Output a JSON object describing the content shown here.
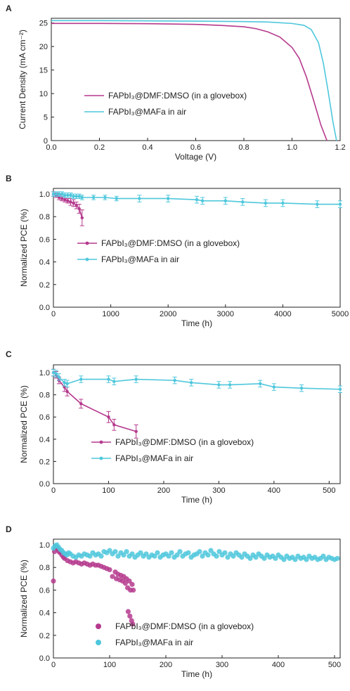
{
  "colors": {
    "magenta": "#b5398d",
    "cyan": "#4ec7dc"
  },
  "chart_data": [
    {
      "panel": "A",
      "type": "line",
      "xlabel": "Voltage (V)",
      "ylabel": "Current Density (mA cm⁻²)",
      "xlim": [
        0,
        1.2
      ],
      "ylim": [
        0,
        26
      ],
      "xticks": [
        "0.0",
        "0.2",
        "0.4",
        "0.6",
        "0.8",
        "1.0",
        "1.2"
      ],
      "yticks": [
        "0",
        "5",
        "10",
        "15",
        "20",
        "25"
      ],
      "legend": [
        "FAPbI₃@DMF:DMSO (in a glovebox)",
        "FAPbI₃@MAFa in air"
      ],
      "series": [
        {
          "name": "FAPbI₃@DMF:DMSO (in a glovebox)",
          "color": "#b5398d",
          "x": [
            0,
            0.2,
            0.4,
            0.6,
            0.7,
            0.8,
            0.85,
            0.9,
            0.95,
            1.0,
            1.03,
            1.06,
            1.09,
            1.12,
            1.145
          ],
          "y": [
            24.9,
            24.9,
            24.85,
            24.7,
            24.5,
            24.2,
            23.8,
            23.1,
            22.0,
            19.8,
            17.5,
            13.5,
            8.5,
            3.3,
            0
          ]
        },
        {
          "name": "FAPbI₃@MAFa in air",
          "color": "#4ec7dc",
          "x": [
            0,
            0.2,
            0.4,
            0.6,
            0.8,
            0.9,
            1.0,
            1.05,
            1.08,
            1.11,
            1.13,
            1.15,
            1.17,
            1.185
          ],
          "y": [
            25.5,
            25.5,
            25.45,
            25.4,
            25.3,
            25.2,
            24.9,
            24.5,
            23.6,
            20.8,
            16.5,
            10.5,
            4.0,
            0
          ]
        }
      ]
    },
    {
      "panel": "B",
      "type": "line",
      "xlabel": "Time (h)",
      "ylabel": "Normalized PCE (%)",
      "xlim": [
        0,
        5000
      ],
      "ylim": [
        0,
        1.05
      ],
      "xticks": [
        "0",
        "1000",
        "2000",
        "3000",
        "4000",
        "5000"
      ],
      "yticks": [
        "0.0",
        "0.2",
        "0.4",
        "0.6",
        "0.8",
        "1.0"
      ],
      "legend": [
        "FAPbI₃@DMF:DMSO (in a glovebox)",
        "FAPbI₃@MAFa in air"
      ],
      "series": [
        {
          "name": "FAPbI₃@DMF:DMSO (in a glovebox)",
          "color": "#b5398d",
          "marker": "dot",
          "x": [
            0,
            50,
            100,
            150,
            200,
            250,
            300,
            350,
            400,
            450,
            500
          ],
          "y": [
            1.0,
            0.99,
            0.97,
            0.96,
            0.95,
            0.94,
            0.93,
            0.92,
            0.9,
            0.87,
            0.79
          ],
          "err": [
            0.02,
            0.02,
            0.02,
            0.02,
            0.02,
            0.02,
            0.03,
            0.03,
            0.03,
            0.04,
            0.07
          ]
        },
        {
          "name": "FAPbI₃@MAFa in air",
          "color": "#4ec7dc",
          "marker": "dot",
          "x": [
            0,
            50,
            100,
            150,
            200,
            250,
            300,
            350,
            400,
            450,
            500,
            700,
            900,
            1100,
            1500,
            2000,
            2500,
            2600,
            3000,
            3300,
            3700,
            4000,
            4600,
            5000
          ],
          "y": [
            1.0,
            1.0,
            1.0,
            1.0,
            0.99,
            0.99,
            0.99,
            0.98,
            0.98,
            0.98,
            0.97,
            0.97,
            0.97,
            0.96,
            0.96,
            0.96,
            0.95,
            0.94,
            0.94,
            0.93,
            0.92,
            0.92,
            0.91,
            0.91
          ],
          "err": [
            0.02,
            0.02,
            0.02,
            0.02,
            0.02,
            0.02,
            0.02,
            0.02,
            0.02,
            0.02,
            0.02,
            0.02,
            0.02,
            0.02,
            0.03,
            0.03,
            0.03,
            0.03,
            0.03,
            0.03,
            0.03,
            0.03,
            0.03,
            0.03
          ]
        }
      ]
    },
    {
      "panel": "C",
      "type": "line",
      "xlabel": "Time (h)",
      "ylabel": "Normalized PCE (%)",
      "xlim": [
        0,
        520
      ],
      "ylim": [
        0,
        1.07
      ],
      "xticks": [
        "0",
        "100",
        "200",
        "300",
        "400",
        "500"
      ],
      "yticks": [
        "0.0",
        "0.2",
        "0.4",
        "0.6",
        "0.8",
        "1.0"
      ],
      "legend": [
        "FAPbI₃@DMF:DMSO (in a glovebox)",
        "FAPbI₃@MAFa in air"
      ],
      "series": [
        {
          "name": "FAPbI₃@DMF:DMSO (in a glovebox)",
          "color": "#b5398d",
          "marker": "dot",
          "x": [
            0,
            5,
            10,
            20,
            25,
            50,
            100,
            110,
            150
          ],
          "y": [
            1.0,
            0.98,
            0.93,
            0.87,
            0.83,
            0.72,
            0.6,
            0.53,
            0.47
          ],
          "err": [
            0.03,
            0.03,
            0.03,
            0.04,
            0.04,
            0.04,
            0.05,
            0.05,
            0.06
          ]
        },
        {
          "name": "FAPbI₃@MAFa in air",
          "color": "#4ec7dc",
          "marker": "dot",
          "x": [
            0,
            5,
            10,
            20,
            25,
            50,
            100,
            110,
            150,
            220,
            250,
            300,
            320,
            375,
            400,
            450,
            520
          ],
          "y": [
            1.0,
            0.99,
            0.96,
            0.91,
            0.9,
            0.94,
            0.94,
            0.92,
            0.94,
            0.93,
            0.91,
            0.89,
            0.89,
            0.9,
            0.87,
            0.86,
            0.85
          ],
          "err": [
            0.03,
            0.03,
            0.03,
            0.03,
            0.03,
            0.03,
            0.03,
            0.03,
            0.03,
            0.03,
            0.03,
            0.03,
            0.03,
            0.03,
            0.03,
            0.03,
            0.03
          ]
        }
      ]
    },
    {
      "panel": "D",
      "type": "scatter",
      "xlabel": "Time (h)",
      "ylabel": "Normalized PCE (%)",
      "xlim": [
        0,
        510
      ],
      "ylim": [
        0,
        1.05
      ],
      "xticks": [
        "0",
        "100",
        "200",
        "300",
        "400",
        "500"
      ],
      "yticks": [
        "0.0",
        "0.2",
        "0.4",
        "0.6",
        "0.8",
        "1.0"
      ],
      "legend": [
        "FAPbI₃@DMF:DMSO (in a glovebox)",
        "FAPbI₃@MAFa in air"
      ],
      "series": [
        {
          "name": "FAPbI₃@DMF:DMSO (in a glovebox)",
          "color": "#b5398d",
          "marker": "circle",
          "x": [
            0,
            2,
            4,
            6,
            8,
            10,
            12,
            15,
            18,
            20,
            25,
            30,
            35,
            40,
            45,
            50,
            55,
            60,
            65,
            70,
            75,
            80,
            85,
            90,
            95,
            100,
            105,
            110,
            112,
            115,
            118,
            120,
            123,
            125,
            128,
            130,
            132,
            135,
            137,
            140,
            142,
            133,
            136,
            139,
            141
          ],
          "y": [
            0.68,
            0.94,
            0.97,
            0.98,
            0.96,
            0.94,
            0.93,
            0.91,
            0.89,
            0.88,
            0.86,
            0.85,
            0.84,
            0.85,
            0.84,
            0.83,
            0.84,
            0.83,
            0.82,
            0.83,
            0.82,
            0.82,
            0.81,
            0.8,
            0.79,
            0.78,
            0.72,
            0.76,
            0.7,
            0.74,
            0.69,
            0.73,
            0.68,
            0.72,
            0.66,
            0.7,
            0.62,
            0.68,
            0.6,
            0.65,
            0.6,
            0.41,
            0.37,
            0.33,
            0.3
          ]
        },
        {
          "name": "FAPbI₃@MAFa in air",
          "color": "#4ec7dc",
          "marker": "circle",
          "x": [
            0,
            3,
            6,
            9,
            12,
            15,
            18,
            21,
            24,
            27,
            30,
            35,
            40,
            45,
            50,
            55,
            60,
            65,
            70,
            75,
            80,
            85,
            90,
            95,
            100,
            105,
            110,
            115,
            120,
            125,
            130,
            135,
            140,
            145,
            150,
            155,
            160,
            165,
            170,
            175,
            180,
            185,
            190,
            195,
            200,
            205,
            210,
            215,
            220,
            225,
            230,
            235,
            240,
            245,
            250,
            255,
            260,
            265,
            270,
            275,
            280,
            285,
            290,
            295,
            300,
            305,
            310,
            315,
            320,
            325,
            330,
            335,
            340,
            345,
            350,
            355,
            360,
            365,
            370,
            375,
            380,
            385,
            390,
            395,
            400,
            405,
            410,
            415,
            420,
            425,
            430,
            435,
            440,
            445,
            450,
            455,
            460,
            465,
            470,
            475,
            480,
            485,
            490,
            495,
            500,
            505
          ],
          "y": [
            0.97,
            0.99,
            1.0,
            0.98,
            0.96,
            0.95,
            0.93,
            0.92,
            0.91,
            0.93,
            0.92,
            0.9,
            0.89,
            0.91,
            0.9,
            0.92,
            0.91,
            0.9,
            0.93,
            0.91,
            0.92,
            0.9,
            0.94,
            0.93,
            0.95,
            0.92,
            0.94,
            0.9,
            0.93,
            0.91,
            0.94,
            0.9,
            0.92,
            0.89,
            0.91,
            0.93,
            0.9,
            0.92,
            0.89,
            0.91,
            0.9,
            0.93,
            0.89,
            0.91,
            0.92,
            0.9,
            0.93,
            0.89,
            0.91,
            0.94,
            0.9,
            0.92,
            0.93,
            0.89,
            0.91,
            0.92,
            0.94,
            0.9,
            0.93,
            0.91,
            0.95,
            0.92,
            0.9,
            0.94,
            0.91,
            0.93,
            0.89,
            0.92,
            0.9,
            0.93,
            0.91,
            0.89,
            0.92,
            0.9,
            0.88,
            0.91,
            0.89,
            0.92,
            0.9,
            0.88,
            0.91,
            0.89,
            0.9,
            0.88,
            0.91,
            0.89,
            0.87,
            0.9,
            0.88,
            0.89,
            0.87,
            0.9,
            0.88,
            0.89,
            0.87,
            0.9,
            0.88,
            0.89,
            0.87,
            0.88,
            0.9,
            0.87,
            0.89,
            0.88,
            0.87,
            0.88
          ]
        }
      ]
    }
  ]
}
